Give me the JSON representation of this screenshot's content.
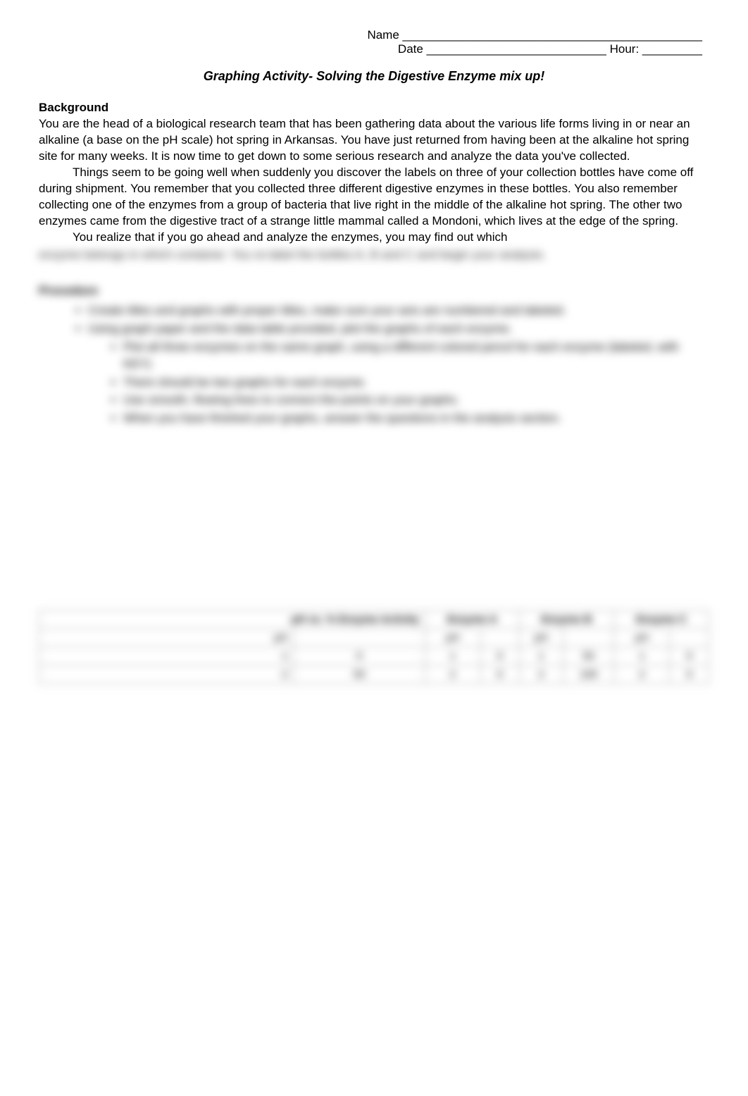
{
  "header": {
    "name_label": "Name",
    "name_blank": "_____________________________________________",
    "date_label": "Date",
    "date_blank": "___________________________",
    "hour_label": "Hour:",
    "hour_blank": "_________"
  },
  "title": "Graphing Activity- Solving the Digestive Enzyme mix up!",
  "background": {
    "heading": "Background",
    "para1": "You are the head of a biological research team that has been gathering data about the various life forms living in or near an alkaline (a base on the pH scale) hot spring in Arkansas.  You have just returned from having been at the alkaline hot spring site for many weeks.  It is now time to get down to some serious research and analyze the data you've collected.",
    "para2": "Things seem to be going well when suddenly you discover the labels on three of your collection bottles have come off during shipment.  You remember that you collected three different digestive enzymes in these bottles.  You also remember collecting one of the enzymes from a group of bacteria that live right in the middle of the alkaline hot spring.  The other two enzymes came from the digestive tract of a strange little mammal called a Mondoni, which lives at the edge of the spring.",
    "para3_visible": "You realize that if you go ahead and analyze the enzymes, you may find out which",
    "para3_blurred": "enzyme belongs in which container.               You re-label the bottles A, B and C and begin your analysis."
  },
  "procedure": {
    "heading": "Procedure",
    "bullets": [
      "Create titles and graphs with proper titles, make sure your axis are numbered and labeled.",
      "Using graph paper and the data table provided, plot the graphs of each enzyme."
    ],
    "sub_bullets": [
      "Plot all three enzymes on the same graph, using a different colored pencil for each enzyme (labeled, with KEY)",
      "There should be two graphs for each enzyme.",
      "Use smooth, flowing lines to connect the points on your graphs.",
      "When you have finished your graphs, answer the questions in the analysis section."
    ]
  },
  "table": {
    "main_header": "pH vs. % Enzyme Activity",
    "col_headers": [
      "",
      "Enzyme A",
      "Enzyme B",
      "Enzyme C"
    ],
    "rows": [
      [
        "pH",
        "",
        "pH",
        "",
        "pH",
        "",
        "pH",
        ""
      ],
      [
        "1",
        "0",
        "1",
        "0",
        "1",
        "50",
        "1",
        "0"
      ],
      [
        "2",
        "50",
        "2",
        "0",
        "2",
        "100",
        "2",
        "0"
      ]
    ]
  },
  "colors": {
    "background": "#ffffff",
    "text": "#000000",
    "blur_text": "#333333",
    "table_border": "#999999"
  },
  "typography": {
    "body_fontsize": 17,
    "title_fontsize": 18,
    "line_height": 1.35,
    "font_family": "Verdana"
  }
}
